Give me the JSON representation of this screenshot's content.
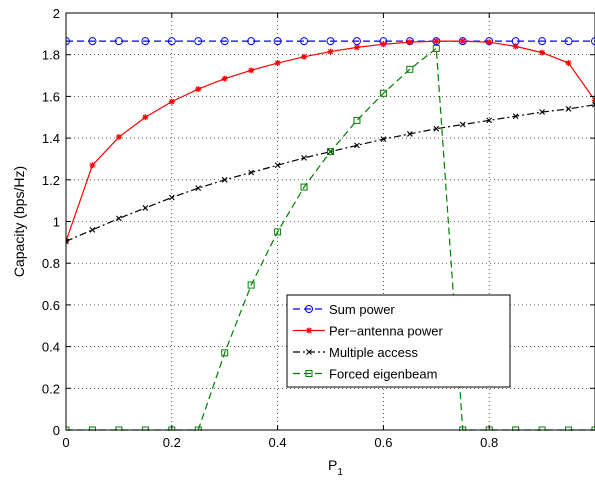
{
  "chart_data": {
    "type": "line",
    "xlabel": "P",
    "xlabel_sub": "1",
    "ylabel": "Capacity (bps/Hz)",
    "xlim": [
      0,
      1
    ],
    "ylim": [
      0,
      2
    ],
    "grid": true,
    "legend_position": "lower-right",
    "x_ticks": [
      0,
      0.2,
      0.4,
      0.6,
      0.8
    ],
    "x_tick_labels": [
      "0",
      "0.2",
      "0.4",
      "0.6",
      "0.8"
    ],
    "y_ticks": [
      0,
      0.2,
      0.4,
      0.6,
      0.8,
      1,
      1.2,
      1.4,
      1.6,
      1.8,
      2
    ],
    "y_tick_labels": [
      "0",
      "0.2",
      "0.4",
      "0.6",
      "0.8",
      "1",
      "1.2",
      "1.4",
      "1.6",
      "1.8",
      "2"
    ],
    "series": [
      {
        "name": "Sum power",
        "color": "#0000ff",
        "dash": "dashed",
        "marker": "circle",
        "x": [
          0,
          0.05,
          0.1,
          0.15,
          0.2,
          0.25,
          0.3,
          0.35,
          0.4,
          0.45,
          0.5,
          0.55,
          0.6,
          0.65,
          0.7,
          0.75,
          0.8,
          0.85,
          0.9,
          0.95,
          1.0
        ],
        "y": [
          1.865,
          1.865,
          1.865,
          1.865,
          1.865,
          1.865,
          1.865,
          1.865,
          1.865,
          1.865,
          1.865,
          1.865,
          1.865,
          1.865,
          1.865,
          1.865,
          1.865,
          1.865,
          1.865,
          1.865,
          1.865
        ]
      },
      {
        "name": "Per−antenna power",
        "color": "#ff0000",
        "dash": "solid",
        "marker": "star",
        "x": [
          0,
          0.05,
          0.1,
          0.15,
          0.2,
          0.25,
          0.3,
          0.35,
          0.4,
          0.45,
          0.5,
          0.55,
          0.6,
          0.65,
          0.7,
          0.75,
          0.8,
          0.85,
          0.9,
          0.95,
          1.0
        ],
        "y": [
          0.905,
          1.27,
          1.405,
          1.5,
          1.575,
          1.635,
          1.685,
          1.725,
          1.76,
          1.79,
          1.815,
          1.835,
          1.85,
          1.86,
          1.865,
          1.865,
          1.86,
          1.84,
          1.81,
          1.76,
          1.58
        ]
      },
      {
        "name": "Multiple access",
        "color": "#000000",
        "dash": "dashdot",
        "marker": "x",
        "x": [
          0,
          0.05,
          0.1,
          0.15,
          0.2,
          0.25,
          0.3,
          0.35,
          0.4,
          0.45,
          0.5,
          0.55,
          0.6,
          0.65,
          0.7,
          0.75,
          0.8,
          0.85,
          0.9,
          0.95,
          1.0
        ],
        "y": [
          0.905,
          0.96,
          1.015,
          1.065,
          1.115,
          1.16,
          1.2,
          1.235,
          1.27,
          1.305,
          1.335,
          1.365,
          1.395,
          1.42,
          1.445,
          1.465,
          1.485,
          1.505,
          1.525,
          1.54,
          1.56
        ]
      },
      {
        "name": "Forced eigenbeam",
        "color": "#008000",
        "dash": "dashed",
        "marker": "square",
        "x": [
          0,
          0.05,
          0.1,
          0.15,
          0.2,
          0.25,
          0.3,
          0.35,
          0.4,
          0.45,
          0.5,
          0.55,
          0.6,
          0.65,
          0.7,
          0.75,
          0.8,
          0.85,
          0.9,
          0.95,
          1.0
        ],
        "y": [
          0,
          0,
          0,
          0,
          0,
          0,
          0.37,
          0.695,
          0.95,
          1.165,
          1.335,
          1.485,
          1.615,
          1.73,
          1.83,
          0,
          0,
          0,
          0,
          0,
          0
        ]
      }
    ]
  }
}
